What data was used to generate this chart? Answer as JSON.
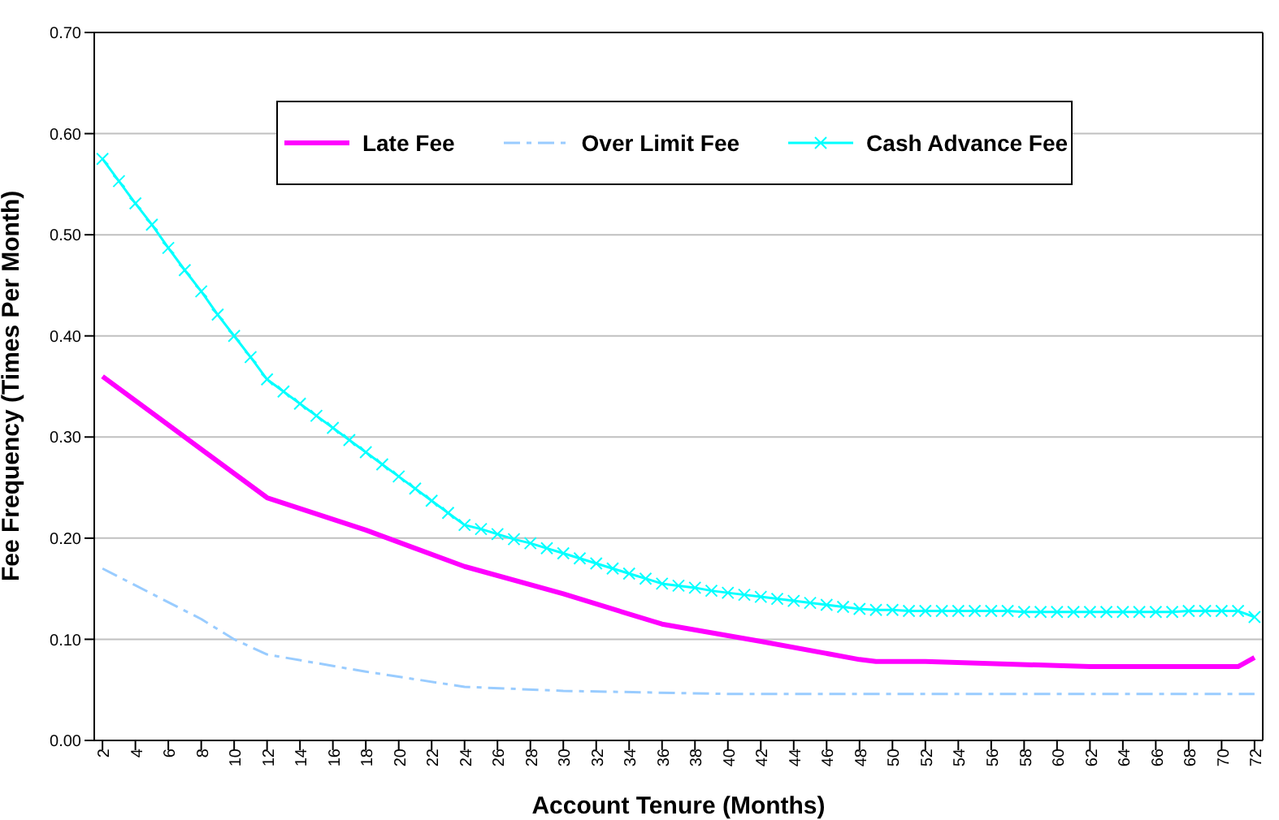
{
  "chart_data": {
    "type": "line",
    "xlabel": "Account Tenure (Months)",
    "ylabel": "Fee Frequency (Times Per Month)",
    "xlim": [
      1.5,
      72.5
    ],
    "xticks": [
      2,
      4,
      6,
      8,
      10,
      12,
      14,
      16,
      18,
      20,
      22,
      24,
      26,
      28,
      30,
      32,
      34,
      36,
      38,
      40,
      42,
      44,
      46,
      48,
      50,
      52,
      54,
      56,
      58,
      60,
      62,
      64,
      66,
      68,
      70,
      72
    ],
    "ylim": [
      0,
      0.7
    ],
    "yticks": [
      {
        "value": 0,
        "label": "0.00"
      },
      {
        "value": 0.1,
        "label": "0.10"
      },
      {
        "value": 0.2,
        "label": "0.20"
      },
      {
        "value": 0.3,
        "label": "0.30"
      },
      {
        "value": 0.4,
        "label": "0.40"
      },
      {
        "value": 0.5,
        "label": "0.50"
      },
      {
        "value": 0.6,
        "label": "0.60"
      },
      {
        "value": 0.7,
        "label": "0.70"
      }
    ],
    "grid": "y",
    "legend": "top",
    "series": [
      {
        "name": "Late Fee",
        "color": "#ff00ff",
        "marker": "none",
        "line_style": "solid",
        "x": [
          2,
          12,
          18,
          24,
          30,
          36,
          42,
          48,
          49,
          52,
          60,
          62,
          71,
          72
        ],
        "values": [
          0.36,
          0.24,
          0.208,
          0.172,
          0.145,
          0.115,
          0.098,
          0.08,
          0.078,
          0.078,
          0.074,
          0.073,
          0.073,
          0.082
        ]
      },
      {
        "name": "Over Limit Fee",
        "color": "#99ccff",
        "marker": "none",
        "line_style": "dashdot",
        "x": [
          2,
          8,
          10,
          12,
          18,
          24,
          30,
          40,
          72
        ],
        "values": [
          0.17,
          0.12,
          0.1,
          0.085,
          0.068,
          0.053,
          0.049,
          0.046,
          0.046
        ]
      },
      {
        "name": "Cash Advance Fee",
        "color": "#00ffff",
        "marker": "cross",
        "line_style": "solid",
        "x": [
          2,
          3,
          4,
          5,
          6,
          7,
          8,
          9,
          10,
          11,
          12,
          13,
          14,
          15,
          16,
          17,
          18,
          19,
          20,
          21,
          22,
          23,
          24,
          25,
          26,
          27,
          28,
          29,
          30,
          31,
          32,
          33,
          34,
          35,
          36,
          37,
          38,
          39,
          40,
          41,
          42,
          43,
          44,
          45,
          46,
          47,
          48,
          49,
          50,
          51,
          52,
          53,
          54,
          55,
          56,
          57,
          58,
          59,
          60,
          61,
          62,
          63,
          64,
          65,
          66,
          67,
          68,
          69,
          70,
          71,
          72
        ],
        "values": [
          0.575,
          0.553,
          0.531,
          0.51,
          0.487,
          0.465,
          0.444,
          0.421,
          0.4,
          0.379,
          0.357,
          0.345,
          0.333,
          0.321,
          0.309,
          0.297,
          0.285,
          0.273,
          0.261,
          0.249,
          0.237,
          0.225,
          0.213,
          0.209,
          0.204,
          0.199,
          0.195,
          0.19,
          0.185,
          0.18,
          0.175,
          0.17,
          0.165,
          0.16,
          0.155,
          0.153,
          0.151,
          0.148,
          0.146,
          0.144,
          0.142,
          0.14,
          0.138,
          0.136,
          0.134,
          0.132,
          0.13,
          0.129,
          0.129,
          0.128,
          0.128,
          0.128,
          0.128,
          0.128,
          0.128,
          0.128,
          0.127,
          0.127,
          0.127,
          0.127,
          0.127,
          0.127,
          0.127,
          0.127,
          0.127,
          0.127,
          0.128,
          0.128,
          0.128,
          0.128,
          0.122
        ]
      }
    ]
  }
}
